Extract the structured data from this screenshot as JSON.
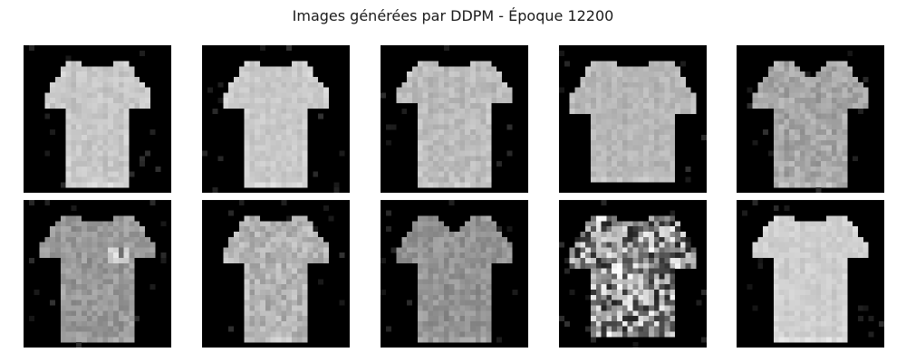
{
  "figure": {
    "title": "Images générées par DDPM - Époque 12200"
  },
  "grid": {
    "rows": 2,
    "cols": 5,
    "image_resolution": 28,
    "background_color": "#000000"
  },
  "samples": [
    {
      "shape": "tshirt-narrow",
      "tone": "#c8c8c8",
      "noise": 0.1,
      "texture": "smooth"
    },
    {
      "shape": "tshirt-narrow",
      "tone": "#cacaca",
      "noise": 0.08,
      "texture": "smooth"
    },
    {
      "shape": "tshirt-wide",
      "tone": "#bcbcbc",
      "noise": 0.12,
      "texture": "smooth"
    },
    {
      "shape": "tshirt-boxy",
      "tone": "#b8b8b8",
      "noise": 0.1,
      "texture": "smooth"
    },
    {
      "shape": "tshirt-vneck",
      "tone": "#a8a8a8",
      "noise": 0.18,
      "texture": "grainy"
    },
    {
      "shape": "tshirt-wide",
      "tone": "#9a9a9a",
      "noise": 0.16,
      "texture": "pattern"
    },
    {
      "shape": "tshirt-narrow",
      "tone": "#b4b4b4",
      "noise": 0.2,
      "texture": "grainy"
    },
    {
      "shape": "tshirt-vneck",
      "tone": "#959595",
      "noise": 0.15,
      "texture": "grainy"
    },
    {
      "shape": "tshirt-boxy",
      "tone": "#8f8f8f",
      "noise": 0.55,
      "texture": "noisy"
    },
    {
      "shape": "tshirt-wide",
      "tone": "#d0d0d0",
      "noise": 0.08,
      "texture": "smooth"
    }
  ]
}
